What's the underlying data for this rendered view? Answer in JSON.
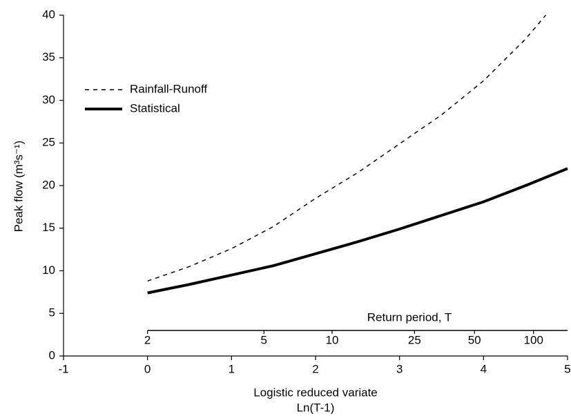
{
  "chart_data": {
    "type": "line",
    "x_label": "Logistic reduced variate",
    "x_label_2": "Ln(T-1)",
    "y_label": "Peak flow (m³s⁻¹)",
    "xlim": [
      -1,
      5
    ],
    "xticks": [
      -1,
      0,
      1,
      2,
      3,
      4,
      5
    ],
    "ylim": [
      0,
      40
    ],
    "yticks": [
      0,
      5,
      10,
      15,
      20,
      25,
      30,
      35,
      40
    ],
    "x2_label": "Return period, T",
    "x2lim": [
      0,
      5
    ],
    "x2ticks": [
      {
        "value": 0,
        "label": "2"
      },
      {
        "value": 1.386,
        "label": "5"
      },
      {
        "value": 2.197,
        "label": "10"
      },
      {
        "value": 3.178,
        "label": "25"
      },
      {
        "value": 3.892,
        "label": "50"
      },
      {
        "value": 4.595,
        "label": "100"
      }
    ],
    "legend": "upper left",
    "series": [
      {
        "name": "Rainfall-Runoff",
        "color": "#000000",
        "style": "dashed",
        "width": 1.5,
        "x": [
          0,
          0.5,
          1,
          1.5,
          2,
          2.5,
          3,
          3.5,
          4,
          4.5,
          4.74
        ],
        "values": [
          8.8,
          10.5,
          12.6,
          15.2,
          18.5,
          21.5,
          24.9,
          28.3,
          32.3,
          37.2,
          40
        ]
      },
      {
        "name": "Statistical",
        "color": "#000000",
        "style": "solid",
        "width": 4,
        "x": [
          0,
          0.5,
          1,
          1.5,
          2,
          2.5,
          3,
          3.5,
          4,
          4.5,
          5
        ],
        "values": [
          7.4,
          8.4,
          9.5,
          10.6,
          12.0,
          13.4,
          14.9,
          16.5,
          18.1,
          20.0,
          22.0
        ]
      }
    ]
  }
}
